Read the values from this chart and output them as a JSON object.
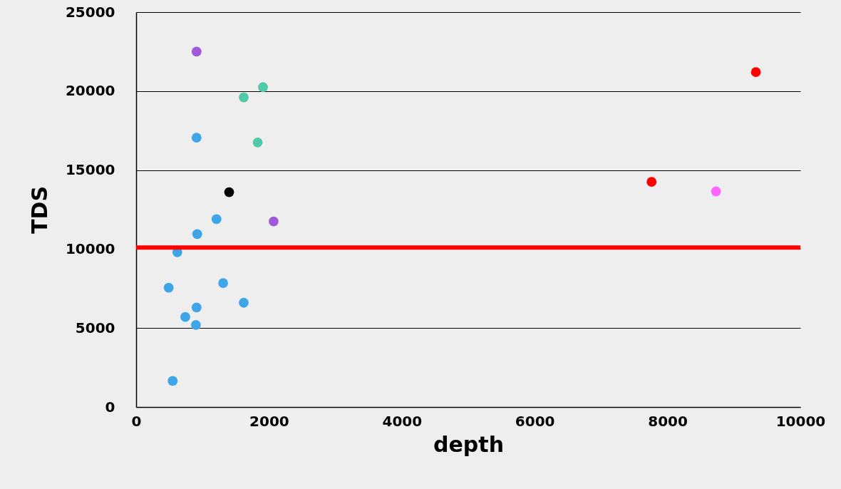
{
  "chart_data": {
    "type": "scatter",
    "xlabel": "depth",
    "ylabel": "TDS",
    "xlim": [
      0,
      10000
    ],
    "xticks": [
      0,
      2000,
      4000,
      6000,
      8000,
      10000
    ],
    "ylim": [
      0,
      25000
    ],
    "yticks": [
      0,
      5000,
      10000,
      15000,
      20000,
      25000
    ],
    "grid": "y",
    "marker": "circle",
    "series": [
      {
        "color": "#3ea6e8",
        "x": [
          910,
          1210,
          920,
          620,
          490,
          1310,
          1620,
          910,
          740,
          900,
          550
        ],
        "values": [
          17050,
          11900,
          10950,
          9800,
          7550,
          7850,
          6600,
          6300,
          5700,
          5200,
          1650
        ]
      },
      {
        "color": "#a259d9",
        "x": [
          910,
          2070
        ],
        "values": [
          22500,
          11750
        ]
      },
      {
        "color": "#4fc9a8",
        "x": [
          1620,
          1910,
          1830
        ],
        "values": [
          19600,
          20250,
          16750
        ]
      },
      {
        "color": "#000000",
        "x": [
          1400
        ],
        "values": [
          13600
        ]
      },
      {
        "color": "#ff0000",
        "x": [
          7760,
          9330
        ],
        "values": [
          14250,
          21200
        ]
      },
      {
        "color": "#ff66ff",
        "x": [
          8730
        ],
        "values": [
          13650
        ]
      }
    ],
    "ref_lines": [
      {
        "axis": "y",
        "value": 10100,
        "color": "#ff0000"
      }
    ]
  }
}
